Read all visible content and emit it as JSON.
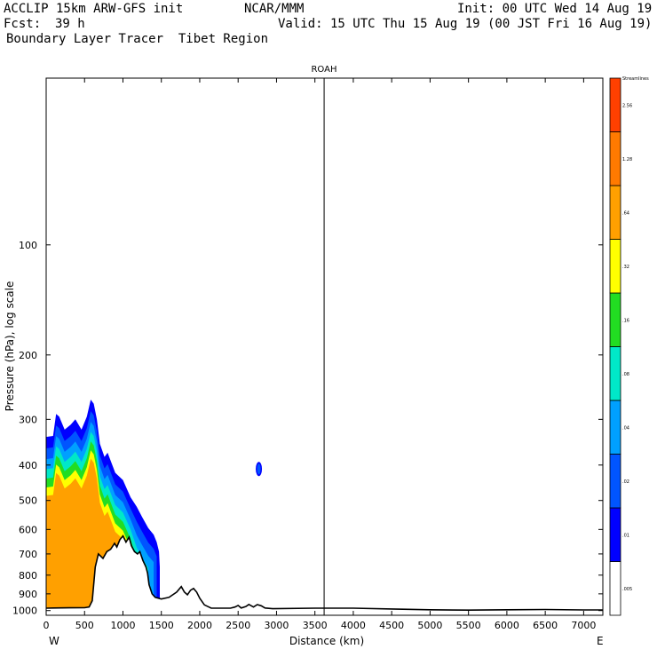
{
  "header": {
    "model": "ACCLIP 15km ARW-GFS init",
    "center": "NCAR/MMM",
    "init": "Init: 00 UTC Wed 14 Aug 19",
    "fcst_label": "Fcst:",
    "fcst_value": "39 h",
    "valid": "Valid: 15 UTC Thu 15 Aug 19 (00 JST Fri 16 Aug 19)",
    "product": "Boundary Layer Tracer  Tibet Region"
  },
  "chart_data": {
    "type": "heatmap",
    "title": "ROAH",
    "xlabel": "Distance (km)",
    "ylabel": "Pressure (hPa), log scale",
    "x_ticks": [
      0,
      500,
      1000,
      1500,
      2000,
      2500,
      3000,
      3500,
      4000,
      4500,
      5000,
      5500,
      6000,
      6500,
      7000
    ],
    "y_ticks": [
      100,
      200,
      300,
      400,
      500,
      600,
      700,
      800,
      900,
      1000
    ],
    "xlim": [
      0,
      7250
    ],
    "ylim_hpa": [
      1030,
      35
    ],
    "left_end_label": "W",
    "right_end_label": "E",
    "marker_line_km": 3620,
    "colorbar": {
      "levels": [
        ".005",
        ".01",
        ".02",
        ".04",
        ".08",
        ".16",
        ".32",
        ".64",
        "1.28",
        "2.56",
        "Streamlines"
      ],
      "colors": [
        "#ffffff",
        "#0000ff",
        "#0055ff",
        "#00a0ff",
        "#00e8c8",
        "#22dd22",
        "#ffff00",
        "#ffa000",
        "#ff7a00",
        "#ff4000"
      ]
    },
    "terrain": [
      [
        0,
        985
      ],
      [
        100,
        984
      ],
      [
        300,
        983
      ],
      [
        500,
        982
      ],
      [
        560,
        978
      ],
      [
        600,
        940
      ],
      [
        640,
        760
      ],
      [
        680,
        700
      ],
      [
        740,
        720
      ],
      [
        790,
        690
      ],
      [
        840,
        680
      ],
      [
        890,
        655
      ],
      [
        920,
        670
      ],
      [
        960,
        640
      ],
      [
        1000,
        625
      ],
      [
        1040,
        650
      ],
      [
        1080,
        630
      ],
      [
        1110,
        665
      ],
      [
        1150,
        690
      ],
      [
        1190,
        700
      ],
      [
        1220,
        690
      ],
      [
        1260,
        730
      ],
      [
        1300,
        760
      ],
      [
        1320,
        790
      ],
      [
        1340,
        850
      ],
      [
        1380,
        900
      ],
      [
        1420,
        920
      ],
      [
        1500,
        930
      ],
      [
        1600,
        920
      ],
      [
        1700,
        890
      ],
      [
        1760,
        860
      ],
      [
        1800,
        890
      ],
      [
        1840,
        905
      ],
      [
        1880,
        880
      ],
      [
        1920,
        870
      ],
      [
        1960,
        890
      ],
      [
        2000,
        925
      ],
      [
        2060,
        965
      ],
      [
        2150,
        985
      ],
      [
        2400,
        985
      ],
      [
        2460,
        978
      ],
      [
        2500,
        968
      ],
      [
        2540,
        984
      ],
      [
        2600,
        975
      ],
      [
        2640,
        962
      ],
      [
        2700,
        978
      ],
      [
        2750,
        963
      ],
      [
        2800,
        970
      ],
      [
        2850,
        984
      ],
      [
        2950,
        988
      ],
      [
        3500,
        985
      ],
      [
        4000,
        985
      ],
      [
        4500,
        990
      ],
      [
        5000,
        995
      ],
      [
        5500,
        997
      ],
      [
        6000,
        995
      ],
      [
        6500,
        993
      ],
      [
        7000,
        996
      ],
      [
        7250,
        996
      ]
    ]
  }
}
